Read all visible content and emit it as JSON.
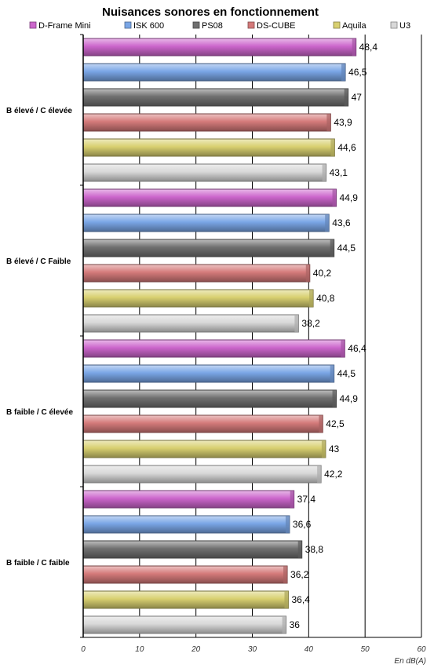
{
  "chart_data": {
    "type": "bar",
    "orientation": "horizontal",
    "title": "Nuisances sonores en fonctionnement",
    "unit_label": "En dB(A)",
    "xlim": [
      0,
      60
    ],
    "ticks": [
      0,
      10,
      20,
      30,
      40,
      50,
      60
    ],
    "grid": true,
    "legend_position": "top",
    "categories": [
      "B élevé / C élevée",
      "B élevé / C Faible",
      "B faible / C élevée",
      "B faible / C faible"
    ],
    "series": [
      {
        "name": "D-Frame Mini",
        "color": "#cc66cc",
        "values": [
          48.4,
          44.9,
          46.4,
          37.4
        ],
        "labels": [
          "48,4",
          "44,9",
          "46,4",
          "37,4"
        ]
      },
      {
        "name": "ISK 600",
        "color": "#7aa6e6",
        "values": [
          46.5,
          43.6,
          44.5,
          36.6
        ],
        "labels": [
          "46,5",
          "43,6",
          "44,5",
          "36,6"
        ]
      },
      {
        "name": "PS08",
        "color": "#707070",
        "values": [
          47,
          44.5,
          44.9,
          38.8
        ],
        "labels": [
          "47",
          "44,5",
          "44,9",
          "38,8"
        ]
      },
      {
        "name": "DS-CUBE",
        "color": "#d47a7a",
        "values": [
          43.9,
          40.2,
          42.5,
          36.2
        ],
        "labels": [
          "43,9",
          "40,2",
          "42,5",
          "36,2"
        ]
      },
      {
        "name": "Aquila",
        "color": "#d8d070",
        "values": [
          44.6,
          40.8,
          43,
          36.4
        ],
        "labels": [
          "44,6",
          "40,8",
          "43",
          "36,4"
        ]
      },
      {
        "name": "U3",
        "color": "#d8d8d8",
        "values": [
          43.1,
          38.2,
          42.2,
          36
        ],
        "labels": [
          "43,1",
          "38,2",
          "42,2",
          "36"
        ]
      }
    ]
  }
}
